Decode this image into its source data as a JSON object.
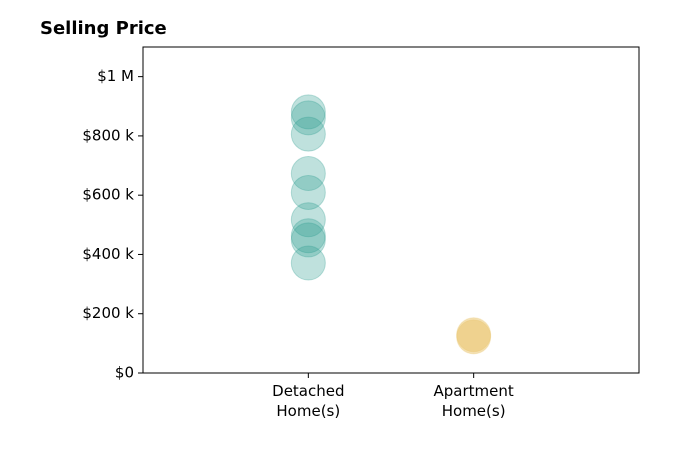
{
  "chart_data": {
    "type": "strip",
    "title": "Selling Price",
    "categories": [
      "Detached\nHome(s)",
      "Apartment\nHome(s)"
    ],
    "colors": [
      "#2a9d8f",
      "#e9c46a"
    ],
    "values": [
      [
        881000,
        861000,
        806000,
        673000,
        609000,
        517000,
        463000,
        449000,
        371000
      ],
      [
        129000,
        122000
      ]
    ],
    "ylim": [
      0,
      1100000
    ],
    "yticks": [
      {
        "value": 0,
        "label": "$0"
      },
      {
        "value": 200000,
        "label": "$200 k"
      },
      {
        "value": 400000,
        "label": "$400 k"
      },
      {
        "value": 600000,
        "label": "$600 k"
      },
      {
        "value": 800000,
        "label": "$800 k"
      },
      {
        "value": 1000000,
        "label": "$1 M"
      }
    ],
    "grid": false
  }
}
